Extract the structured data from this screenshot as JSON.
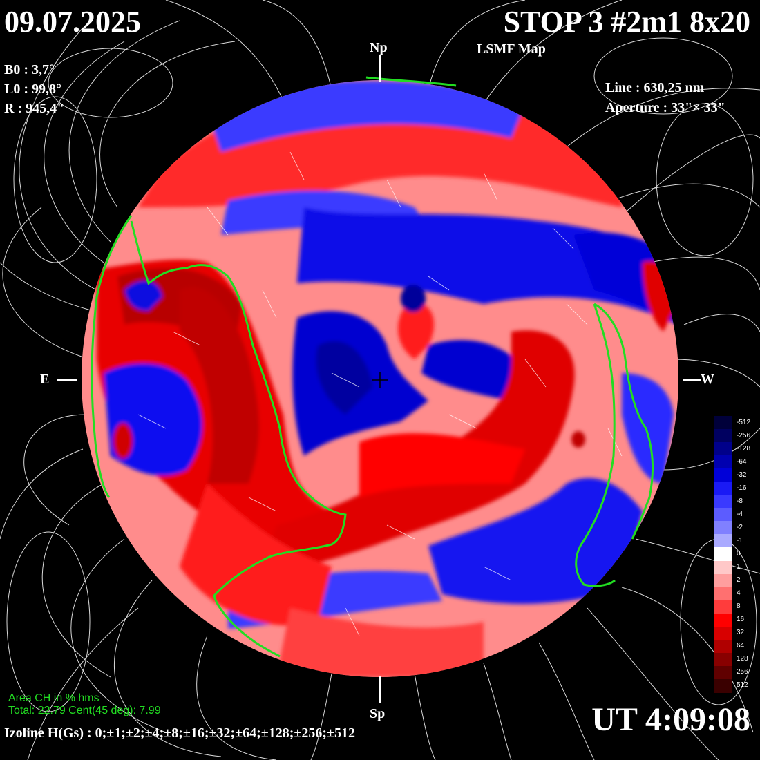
{
  "header": {
    "date": "09.07.2025",
    "title": "STOP 3 #2m1 8x20",
    "subtitle": "LSMF  Map"
  },
  "params": {
    "b0": "B0 : 3,7°",
    "l0": "L0 : 99,8°",
    "r": "R  : 945,4\""
  },
  "instrument": {
    "line": "Line :  630,25 nm",
    "aperture": "Aperture : 33\"× 33\""
  },
  "poles": {
    "north": "Np",
    "south": "Sp",
    "east": "E",
    "west": "W"
  },
  "coronal_hole": {
    "heading": "Area CH in % hms",
    "values": "Total: 22.79    Cent(45 deg): 7.99"
  },
  "time": "UT 4:09:08",
  "izoline": "Izoline H(Gs) : 0;±1;±2;±4;±8;±16;±32;±64;±128;±256;±512",
  "scale": {
    "labels": [
      "-512",
      "-256",
      "-128",
      "-64",
      "-32",
      "-16",
      "-8",
      "-4",
      "-2",
      "-1",
      "0",
      "1",
      "2",
      "4",
      "8",
      "16",
      "32",
      "64",
      "128",
      "256",
      "512"
    ],
    "colors": [
      "#00003a",
      "#000060",
      "#00008a",
      "#0000b0",
      "#0000d8",
      "#1a1af5",
      "#3a3aff",
      "#5c5cff",
      "#8080ff",
      "#aaaaff",
      "#ffffff",
      "#ffc8c8",
      "#ff9e9e",
      "#ff7070",
      "#ff3c3c",
      "#ff0000",
      "#d80000",
      "#b00000",
      "#880000",
      "#600000",
      "#3a0000"
    ]
  },
  "colors": {
    "negative": "#0000e0",
    "positive": "#e00000",
    "neutral_line": "#22dd22"
  }
}
